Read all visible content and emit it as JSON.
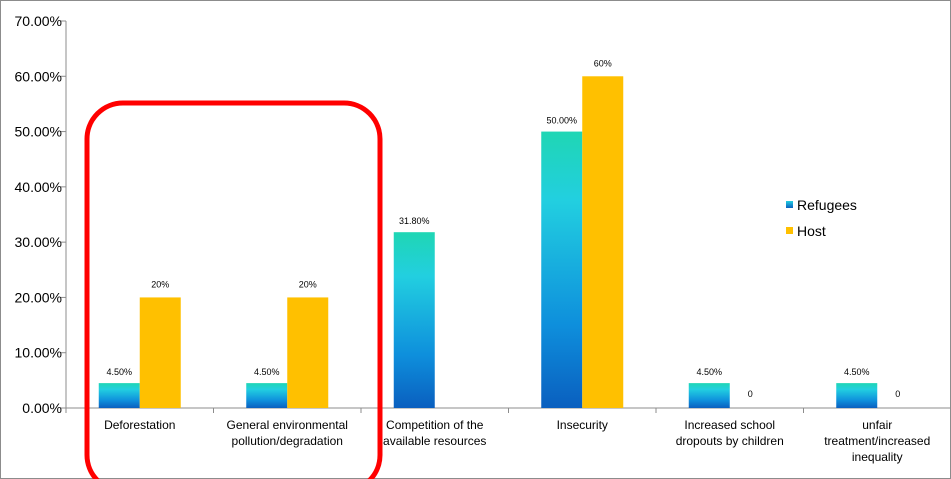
{
  "chart_data": {
    "type": "bar",
    "title": "",
    "xlabel": "",
    "ylabel": "",
    "ylim": [
      0,
      0.7
    ],
    "y_tick_labels": [
      "0.00%",
      "10.00%",
      "20.00%",
      "30.00%",
      "40.00%",
      "50.00%",
      "60.00%",
      "70.00%"
    ],
    "categories": [
      [
        "Deforestation"
      ],
      [
        "General environmental",
        "pollution/degradation"
      ],
      [
        "Competition of the",
        "available resources"
      ],
      [
        "Insecurity"
      ],
      [
        "Increased school",
        "dropouts by children"
      ],
      [
        "unfair",
        "treatment/increased",
        "inequality"
      ]
    ],
    "series": [
      {
        "name": "Refugees",
        "values": [
          0.045,
          0.045,
          0.318,
          0.5,
          0.045,
          0.045
        ],
        "labels": [
          "4.50%",
          "4.50%",
          "31.80%",
          "50.00%",
          "4.50%",
          "4.50%"
        ]
      },
      {
        "name": "Host",
        "values": [
          0.2,
          0.2,
          null,
          0.6,
          0,
          0
        ],
        "labels": [
          "20%",
          "20%",
          "",
          "60%",
          "0",
          "0"
        ]
      }
    ],
    "legend_position": "right",
    "grid": false,
    "colors": {
      "refugees_top": "#1fd6b4",
      "refugees_mid": "#22b8e0",
      "refugees_bottom": "#0a5fbf",
      "host": "#ffc000",
      "highlight_box": "#ff0000",
      "axis": "#8c8c8c"
    }
  }
}
